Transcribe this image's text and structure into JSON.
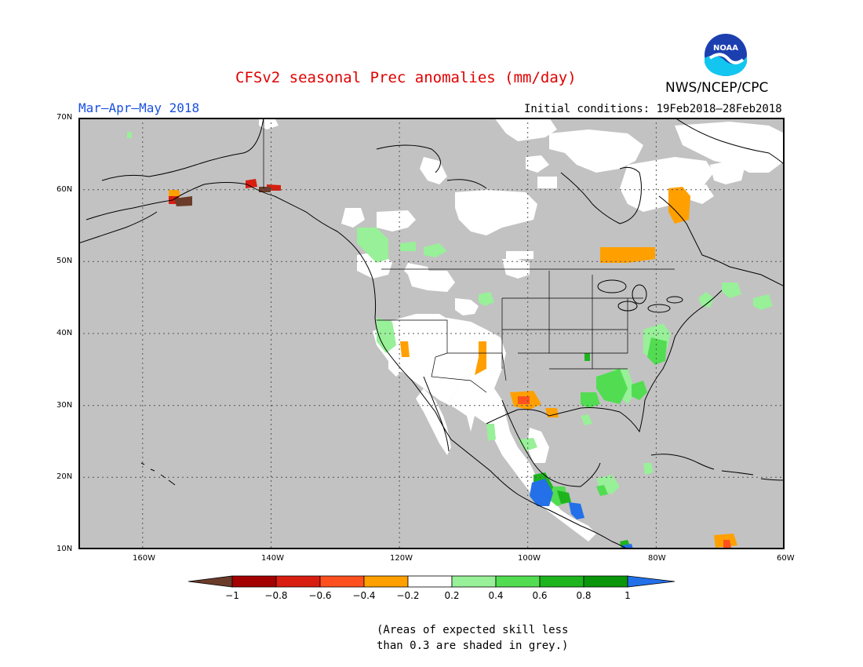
{
  "header": {
    "title": "CFSv2 seasonal Prec anomalies (mm/day)",
    "season": "Mar–Apr–May 2018",
    "agency": "NWS/NCEP/CPC",
    "initial_conditions": "Initial conditions: 19Feb2018–28Feb2018",
    "logo_text": "NOAA"
  },
  "map": {
    "lat_ticks": [
      "70N",
      "60N",
      "50N",
      "40N",
      "30N",
      "20N",
      "10N"
    ],
    "lon_ticks": [
      "160W",
      "140W",
      "120W",
      "100W",
      "80W",
      "60W"
    ],
    "grey_meaning": "low skill"
  },
  "colorbar": {
    "labels": [
      "−1",
      "−0.8",
      "−0.6",
      "−0.4",
      "−0.2",
      "0.2",
      "0.4",
      "0.6",
      "0.8",
      "1"
    ],
    "colors": {
      "lt_neg1": "#6b3c2a",
      "neg1_neg08": "#a30000",
      "neg08_neg06": "#d81e10",
      "neg06_neg04": "#ff5020",
      "neg04_neg02": "#ffa000",
      "neg02_02": "#ffffff",
      "p02_p04": "#98f098",
      "p04_p06": "#52dc52",
      "p06_p08": "#1eb41e",
      "p08_p1": "#0a960a",
      "gt1": "#2470e8"
    }
  },
  "footnote": {
    "line1": "(Areas of expected skill less",
    "line2": "than 0.3 are shaded in grey.)"
  }
}
